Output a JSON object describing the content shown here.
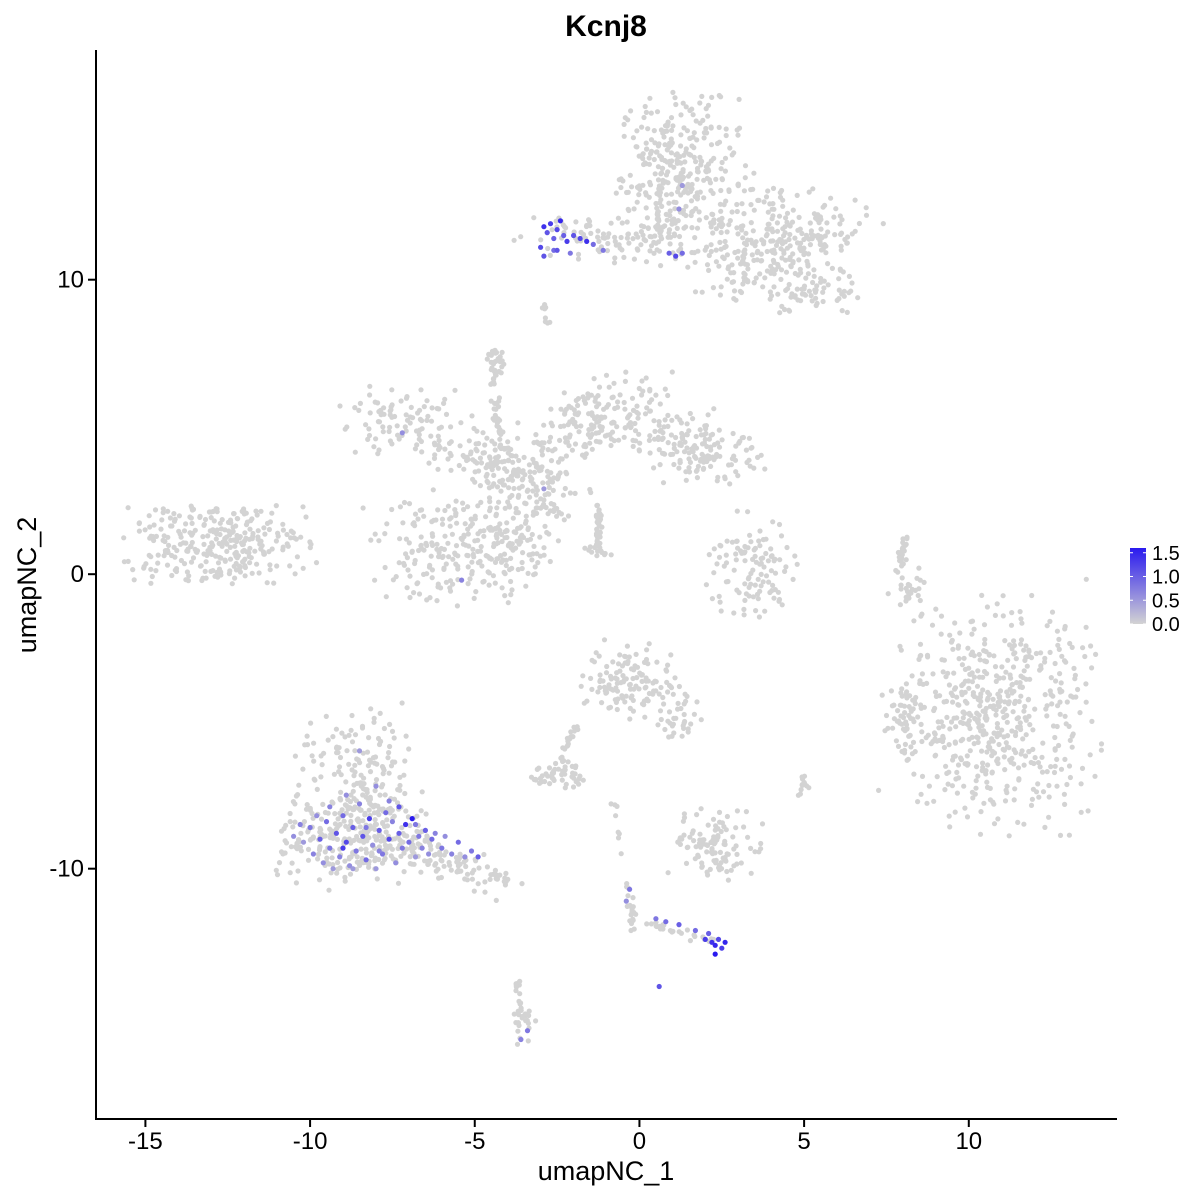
{
  "chart_data": {
    "type": "scatter",
    "title": "Kcnj8",
    "xlabel": "umapNC_1",
    "ylabel": "umapNC_2",
    "xlim": [
      -16.5,
      14.5
    ],
    "ylim": [
      -18.5,
      17.8
    ],
    "x_ticks": [
      -15,
      -10,
      -5,
      0,
      5,
      10
    ],
    "x_tick_labels": [
      "-15",
      "-10",
      "-5",
      "0",
      "5",
      "10"
    ],
    "y_ticks": [
      -10,
      0,
      10
    ],
    "y_tick_labels": [
      "-10",
      "0",
      "10"
    ],
    "grid": false,
    "legend_position": "right",
    "color_scale": {
      "low_color": "#d3d3d3",
      "high_color": "#2a1aef",
      "min": 0.0,
      "max": 1.6,
      "breaks": [
        0.0,
        0.5,
        1.0,
        1.5
      ],
      "break_labels": [
        "0.0",
        "0.5",
        "1.0",
        "1.5"
      ]
    },
    "clusters": [
      {
        "cx": 1.2,
        "cy": 13.6,
        "sx": 0.9,
        "sy": 1.3,
        "n": 320,
        "angle": 0
      },
      {
        "cx": 4.3,
        "cy": 11.6,
        "sx": 1.3,
        "sy": 0.8,
        "n": 220,
        "angle": -0.2
      },
      {
        "cx": 5.2,
        "cy": 9.6,
        "sx": 0.8,
        "sy": 0.4,
        "n": 70,
        "angle": 0
      },
      {
        "cx": -1.2,
        "cy": 11.3,
        "sx": 1.4,
        "sy": 0.35,
        "n": 90,
        "angle": -0.1
      },
      {
        "cx": 3.2,
        "cy": 10.3,
        "sx": 0.8,
        "sy": 0.5,
        "n": 60,
        "angle": 0
      },
      {
        "cx": -7.2,
        "cy": 5.2,
        "sx": 1.0,
        "sy": 0.6,
        "n": 90,
        "angle": 0
      },
      {
        "cx": -4.6,
        "cy": 4.0,
        "sx": 1.0,
        "sy": 0.5,
        "n": 110,
        "angle": -0.3
      },
      {
        "cx": -1.6,
        "cy": 5.0,
        "sx": 0.9,
        "sy": 0.6,
        "n": 100,
        "angle": 0.4
      },
      {
        "cx": -0.3,
        "cy": 5.6,
        "sx": 0.7,
        "sy": 0.6,
        "n": 70,
        "angle": 0
      },
      {
        "cx": 1.2,
        "cy": 4.6,
        "sx": 0.8,
        "sy": 0.5,
        "n": 70,
        "angle": 0
      },
      {
        "cx": 2.2,
        "cy": 3.9,
        "sx": 0.7,
        "sy": 0.4,
        "n": 80,
        "angle": 0
      },
      {
        "cx": -3.2,
        "cy": 2.7,
        "sx": 0.8,
        "sy": 0.9,
        "n": 130,
        "angle": 0
      },
      {
        "cx": -5.7,
        "cy": 0.9,
        "sx": 1.2,
        "sy": 0.9,
        "n": 190,
        "angle": 0
      },
      {
        "cx": -4.0,
        "cy": 0.9,
        "sx": 0.6,
        "sy": 0.8,
        "n": 80,
        "angle": 0
      },
      {
        "cx": -4.3,
        "cy": 7.2,
        "sx": 0.15,
        "sy": 0.25,
        "n": 25,
        "angle": 0
      },
      {
        "cx": -12.9,
        "cy": 1.1,
        "sx": 1.4,
        "sy": 0.7,
        "n": 300,
        "angle": 0
      },
      {
        "cx": 3.4,
        "cy": 0.1,
        "sx": 0.65,
        "sy": 0.9,
        "n": 110,
        "angle": 0
      },
      {
        "cx": 10.7,
        "cy": -4.8,
        "sx": 1.5,
        "sy": 1.8,
        "n": 560,
        "angle": 0
      },
      {
        "cx": 8.0,
        "cy": -4.8,
        "sx": 0.25,
        "sy": 0.5,
        "n": 40,
        "angle": 0
      },
      {
        "cx": -0.3,
        "cy": -3.6,
        "sx": 0.65,
        "sy": 0.6,
        "n": 120,
        "angle": 0
      },
      {
        "cx": 1.1,
        "cy": -4.7,
        "sx": 0.4,
        "sy": 0.5,
        "n": 40,
        "angle": 0.5
      },
      {
        "cx": -2.5,
        "cy": -6.8,
        "sx": 0.4,
        "sy": 0.25,
        "n": 50,
        "angle": 0
      },
      {
        "cx": 2.4,
        "cy": -9.2,
        "sx": 0.7,
        "sy": 0.55,
        "n": 110,
        "angle": 0
      },
      {
        "cx": -8.5,
        "cy": -6.8,
        "sx": 0.9,
        "sy": 1.1,
        "n": 150,
        "angle": 0
      },
      {
        "cx": -8.8,
        "cy": -9.0,
        "sx": 1.1,
        "sy": 0.8,
        "n": 260,
        "angle": 0
      },
      {
        "cx": -6.2,
        "cy": -9.6,
        "sx": 1.3,
        "sy": 0.4,
        "n": 110,
        "angle": -0.3
      },
      {
        "cx": 5.0,
        "cy": -7.2,
        "sx": 0.1,
        "sy": 0.2,
        "n": 14,
        "angle": 0
      },
      {
        "cx": -3.5,
        "cy": -15.1,
        "sx": 0.2,
        "sy": 0.4,
        "n": 22,
        "angle": 0
      },
      {
        "cx": 8.2,
        "cy": -0.4,
        "sx": 0.2,
        "sy": 0.6,
        "n": 26,
        "angle": 0
      }
    ],
    "arms": [
      {
        "x0": -1.2,
        "y0": 2.3,
        "x1": -1.3,
        "y1": 0.8,
        "n": 40
      },
      {
        "x0": -4.5,
        "y0": 7.0,
        "x1": -4.2,
        "y1": 4.6,
        "n": 35
      },
      {
        "x0": -1.7,
        "y0": 0.9,
        "x1": -0.8,
        "y1": 0.6,
        "n": 10
      },
      {
        "x0": 0.6,
        "y0": 13.5,
        "x1": 0.6,
        "y1": 11.2,
        "n": 25
      },
      {
        "x0": -2.9,
        "y0": 9.1,
        "x1": -2.8,
        "y1": 8.5,
        "n": 8
      },
      {
        "x0": -1.9,
        "y0": -5.1,
        "x1": -2.4,
        "y1": -6.3,
        "n": 18
      },
      {
        "x0": -0.4,
        "y0": -10.5,
        "x1": -0.2,
        "y1": -12.1,
        "n": 22
      },
      {
        "x0": 0.2,
        "y0": -11.8,
        "x1": 2.3,
        "y1": -12.5,
        "n": 25
      },
      {
        "x0": -4.5,
        "y0": -10.2,
        "x1": -3.9,
        "y1": -10.5,
        "n": 12
      },
      {
        "x0": -3.7,
        "y0": -13.9,
        "x1": -3.5,
        "y1": -15.6,
        "n": 14
      },
      {
        "x0": -0.8,
        "y0": -7.5,
        "x1": -0.6,
        "y1": -9.5,
        "n": 8
      },
      {
        "x0": 8.1,
        "y0": 1.3,
        "x1": 7.8,
        "y1": 0.1,
        "n": 22
      }
    ],
    "expressed_points": [
      [
        -10.5,
        -8.9,
        0.6
      ],
      [
        -10.2,
        -9.1,
        0.5
      ],
      [
        -10.0,
        -8.6,
        0.8
      ],
      [
        -9.9,
        -9.5,
        0.7
      ],
      [
        -9.7,
        -9.0,
        1.0
      ],
      [
        -9.6,
        -9.8,
        0.6
      ],
      [
        -9.5,
        -8.4,
        0.9
      ],
      [
        -9.4,
        -9.3,
        0.8
      ],
      [
        -9.3,
        -10.0,
        0.5
      ],
      [
        -9.2,
        -8.8,
        1.1
      ],
      [
        -9.1,
        -9.6,
        0.7
      ],
      [
        -9.0,
        -8.2,
        0.9
      ],
      [
        -8.9,
        -9.1,
        1.2
      ],
      [
        -8.8,
        -9.9,
        0.6
      ],
      [
        -8.7,
        -8.6,
        1.0
      ],
      [
        -8.6,
        -9.4,
        0.8
      ],
      [
        -8.5,
        -7.8,
        0.7
      ],
      [
        -8.4,
        -8.9,
        1.1
      ],
      [
        -8.3,
        -9.7,
        0.9
      ],
      [
        -8.2,
        -8.3,
        1.3
      ],
      [
        -8.1,
        -9.2,
        0.6
      ],
      [
        -8.0,
        -10.0,
        0.5
      ],
      [
        -7.9,
        -8.7,
        1.0
      ],
      [
        -7.8,
        -9.5,
        0.8
      ],
      [
        -7.7,
        -8.1,
        0.9
      ],
      [
        -7.6,
        -9.0,
        1.2
      ],
      [
        -7.5,
        -8.4,
        0.7
      ],
      [
        -7.4,
        -9.8,
        0.6
      ],
      [
        -7.3,
        -8.8,
        1.0
      ],
      [
        -7.2,
        -9.3,
        0.8
      ],
      [
        -7.1,
        -8.5,
        1.4
      ],
      [
        -7.0,
        -9.1,
        0.9
      ],
      [
        -6.9,
        -8.3,
        1.8
      ],
      [
        -6.8,
        -9.6,
        0.5
      ],
      [
        -6.7,
        -8.9,
        0.8
      ],
      [
        -6.6,
        -9.3,
        0.7
      ],
      [
        -6.5,
        -8.7,
        1.0
      ],
      [
        -6.4,
        -9.5,
        0.6
      ],
      [
        -6.3,
        -9.0,
        0.9
      ],
      [
        -6.2,
        -8.8,
        0.7
      ],
      [
        -6.0,
        -9.3,
        0.8
      ],
      [
        -5.9,
        -8.9,
        0.6
      ],
      [
        -5.7,
        -9.5,
        0.7
      ],
      [
        -5.5,
        -9.1,
        0.9
      ],
      [
        -5.3,
        -9.6,
        0.6
      ],
      [
        -5.1,
        -9.4,
        0.8
      ],
      [
        -4.9,
        -9.6,
        1.0
      ],
      [
        -8.5,
        -6.0,
        0.5
      ],
      [
        -8.0,
        -7.2,
        0.6
      ],
      [
        -7.6,
        -7.7,
        0.7
      ],
      [
        -9.8,
        -8.2,
        0.6
      ],
      [
        -10.3,
        -8.5,
        0.7
      ],
      [
        -8.7,
        -10.0,
        0.5
      ],
      [
        -9.0,
        -9.3,
        1.3
      ],
      [
        -8.3,
        -8.6,
        0.8
      ],
      [
        -7.9,
        -9.4,
        0.7
      ],
      [
        -8.9,
        -7.5,
        0.6
      ],
      [
        -9.4,
        -7.9,
        0.7
      ],
      [
        -7.3,
        -7.9,
        1.1
      ],
      [
        -6.8,
        -8.5,
        0.8
      ],
      [
        -2.9,
        11.8,
        1.4
      ],
      [
        -2.8,
        11.6,
        1.1
      ],
      [
        -2.7,
        11.9,
        1.3
      ],
      [
        -2.6,
        11.4,
        1.0
      ],
      [
        -2.5,
        11.7,
        1.2
      ],
      [
        -2.4,
        12.0,
        1.5
      ],
      [
        -2.3,
        11.5,
        1.0
      ],
      [
        -2.2,
        11.3,
        1.3
      ],
      [
        -2.0,
        11.5,
        1.1
      ],
      [
        -1.8,
        11.4,
        1.2
      ],
      [
        -1.6,
        11.3,
        1.4
      ],
      [
        -3.0,
        11.1,
        1.2
      ],
      [
        -2.9,
        10.8,
        1.1
      ],
      [
        -2.6,
        11.0,
        0.9
      ],
      [
        -2.1,
        10.9,
        0.8
      ],
      [
        -1.4,
        11.2,
        0.9
      ],
      [
        -1.1,
        11.0,
        0.8
      ],
      [
        0.9,
        10.9,
        1.0
      ],
      [
        1.1,
        10.8,
        1.2
      ],
      [
        1.3,
        10.9,
        0.9
      ],
      [
        1.2,
        12.4,
        0.6
      ],
      [
        1.3,
        13.2,
        0.5
      ],
      [
        -2.5,
        11.0,
        1.1
      ],
      [
        2.0,
        -12.4,
        1.3
      ],
      [
        2.2,
        -12.5,
        1.4
      ],
      [
        2.3,
        -12.6,
        1.5
      ],
      [
        2.4,
        -12.4,
        1.2
      ],
      [
        2.5,
        -12.7,
        1.3
      ],
      [
        2.6,
        -12.5,
        1.5
      ],
      [
        2.3,
        -12.9,
        1.6
      ],
      [
        2.1,
        -12.2,
        1.0
      ],
      [
        1.7,
        -12.1,
        0.9
      ],
      [
        1.2,
        -11.9,
        1.0
      ],
      [
        0.8,
        -11.8,
        0.9
      ],
      [
        0.5,
        -11.7,
        0.8
      ],
      [
        0.6,
        -14.0,
        1.1
      ],
      [
        -0.3,
        -10.7,
        0.8
      ],
      [
        -0.4,
        -11.1,
        0.6
      ],
      [
        -3.4,
        -15.5,
        0.8
      ],
      [
        -3.6,
        -15.8,
        0.7
      ],
      [
        -7.2,
        4.8,
        0.6
      ],
      [
        -2.9,
        2.9,
        0.5
      ],
      [
        -5.4,
        -0.2,
        0.7
      ]
    ]
  }
}
